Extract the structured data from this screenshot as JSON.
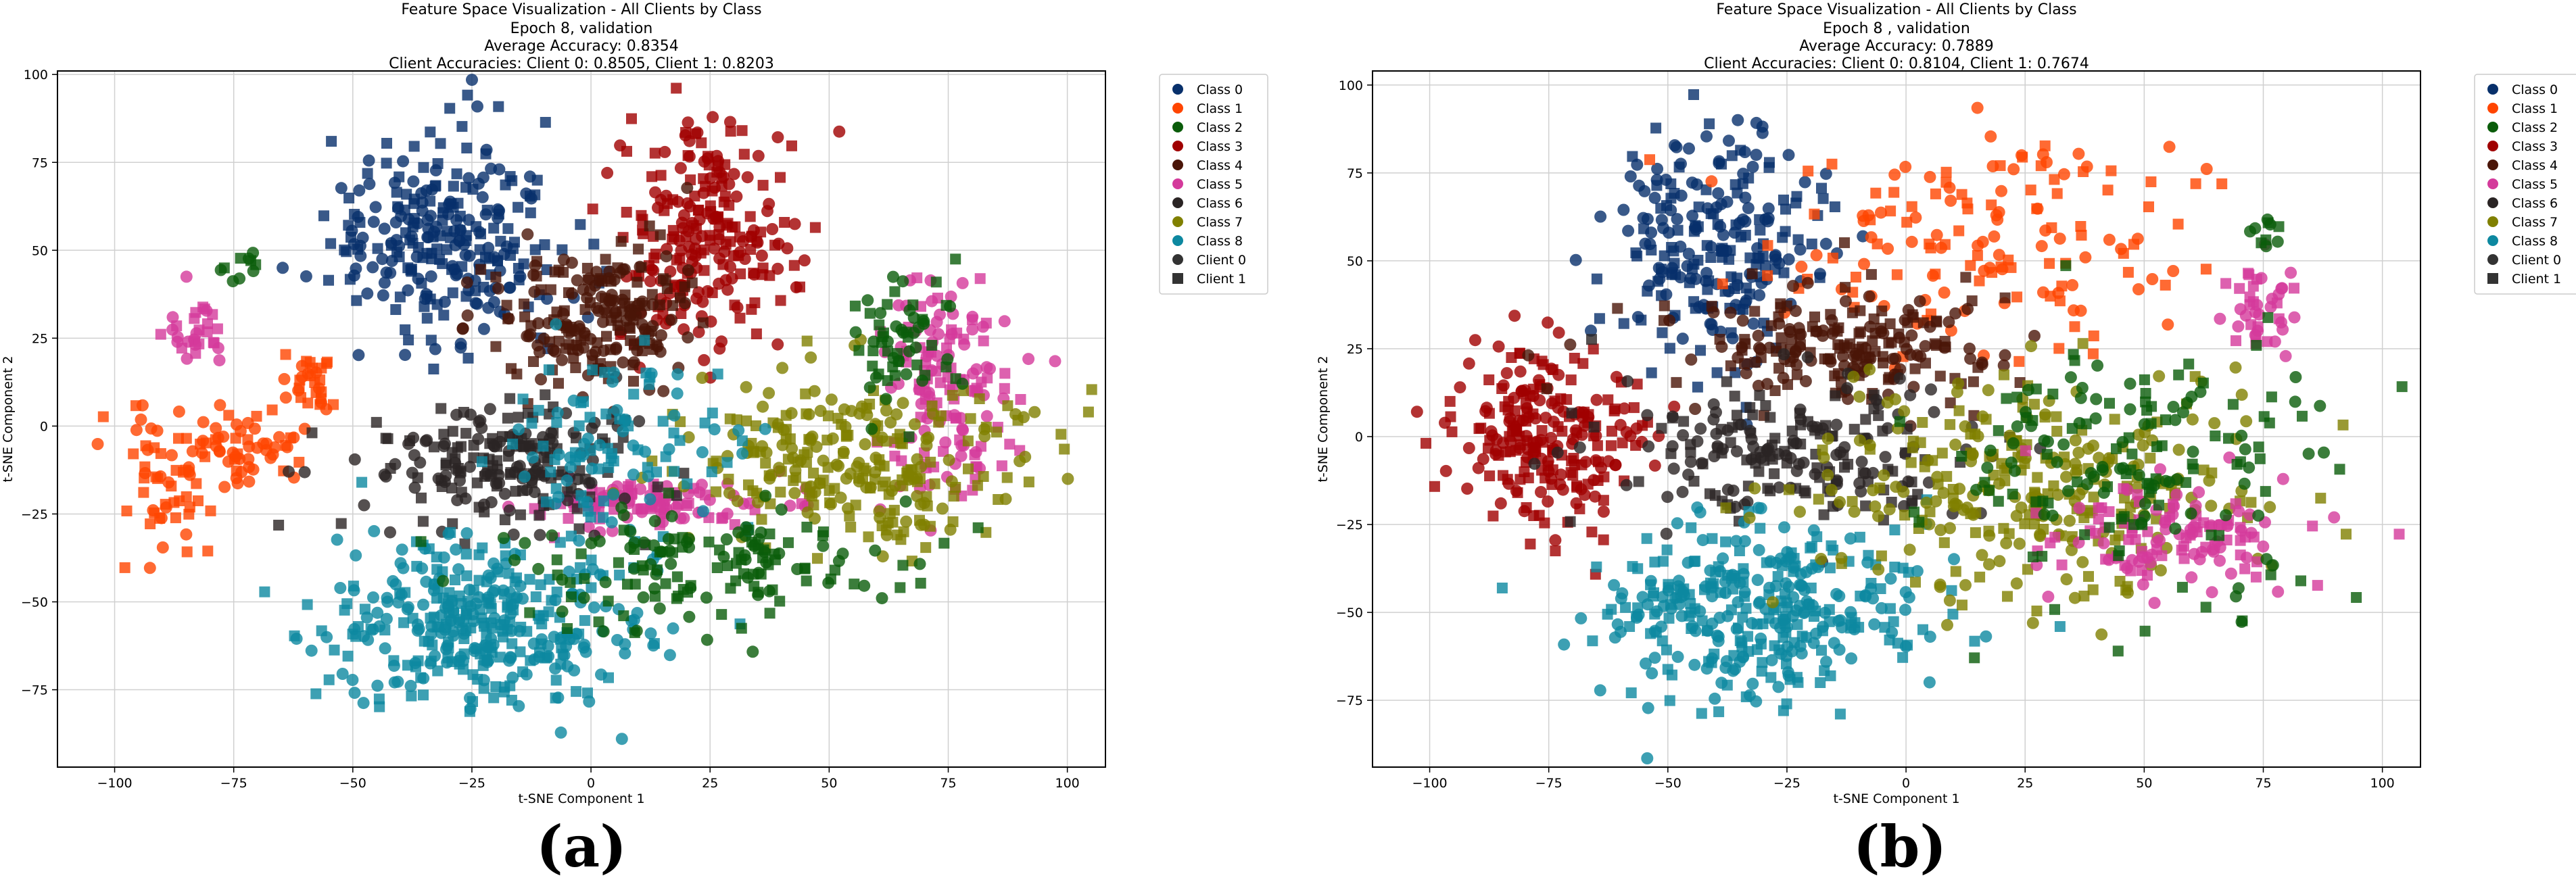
{
  "figure": {
    "panel_labels": [
      "(a)",
      "(b)"
    ]
  },
  "chart_data": [
    {
      "type": "scatter",
      "title": "Feature Space Visualization - All Clients by Class",
      "subtitle_lines": [
        "Epoch 8, validation",
        "Average Accuracy: 0.8354",
        "Client Accuracies: Client 0: 0.8505, Client 1: 0.8203"
      ],
      "xlabel": "t-SNE Component 1",
      "ylabel": "t-SNE Component 2",
      "xlim": [
        -112,
        108
      ],
      "ylim": [
        -97,
        101
      ],
      "xticks": [
        -100,
        -75,
        -50,
        -25,
        0,
        25,
        50,
        75,
        100
      ],
      "yticks": [
        -75,
        -50,
        -25,
        0,
        25,
        50,
        75,
        100
      ],
      "xtick_labels": [
        "−100",
        "−75",
        "−50",
        "−25",
        "0",
        "25",
        "50",
        "75",
        "100"
      ],
      "ytick_labels": [
        "−75",
        "−50",
        "−25",
        "0",
        "25",
        "50",
        "75",
        "100"
      ],
      "grid": true,
      "legend_position": "outside-top-right",
      "legend": [
        {
          "label": "Class 0",
          "color": "#08306b",
          "marker": "circle"
        },
        {
          "label": "Class 1",
          "color": "#ff4500",
          "marker": "circle"
        },
        {
          "label": "Class 2",
          "color": "#0a5c0a",
          "marker": "circle"
        },
        {
          "label": "Class 3",
          "color": "#a00000",
          "marker": "circle"
        },
        {
          "label": "Class 4",
          "color": "#4a1508",
          "marker": "circle"
        },
        {
          "label": "Class 5",
          "color": "#d43a9b",
          "marker": "circle"
        },
        {
          "label": "Class 6",
          "color": "#2a2424",
          "marker": "circle"
        },
        {
          "label": "Class 7",
          "color": "#808000",
          "marker": "circle"
        },
        {
          "label": "Class 8",
          "color": "#0d88a0",
          "marker": "circle"
        },
        {
          "label": "Client 0",
          "color": "#333333",
          "marker": "circle"
        },
        {
          "label": "Client 1",
          "color": "#333333",
          "marker": "square"
        }
      ],
      "clusters": [
        {
          "class": 0,
          "cx": -30,
          "cy": 55,
          "sx": 12,
          "sy": 15,
          "n": 260
        },
        {
          "class": 1,
          "cx": -88,
          "cy": -15,
          "sx": 5,
          "sy": 12,
          "n": 60
        },
        {
          "class": 1,
          "cx": -72,
          "cy": -8,
          "sx": 6,
          "sy": 4,
          "n": 50
        },
        {
          "class": 1,
          "cx": -60,
          "cy": 12,
          "sx": 4,
          "sy": 6,
          "n": 30
        },
        {
          "class": 3,
          "cx": 25,
          "cy": 55,
          "sx": 9,
          "sy": 15,
          "n": 230
        },
        {
          "class": 4,
          "cx": 2,
          "cy": 30,
          "sx": 11,
          "sy": 11,
          "n": 200
        },
        {
          "class": 5,
          "cx": -83,
          "cy": 27,
          "sx": 3,
          "sy": 5,
          "n": 30
        },
        {
          "class": 5,
          "cx": 75,
          "cy": 12,
          "sx": 7,
          "sy": 15,
          "n": 140
        },
        {
          "class": 5,
          "cx": 15,
          "cy": -22,
          "sx": 13,
          "sy": 4,
          "n": 100
        },
        {
          "class": 6,
          "cx": -20,
          "cy": -10,
          "sx": 15,
          "sy": 10,
          "n": 200
        },
        {
          "class": 7,
          "cx": 55,
          "cy": -10,
          "sx": 18,
          "sy": 12,
          "n": 260
        },
        {
          "class": 8,
          "cx": -25,
          "cy": -55,
          "sx": 16,
          "sy": 12,
          "n": 350
        },
        {
          "class": 8,
          "cx": 5,
          "cy": -10,
          "sx": 11,
          "sy": 15,
          "n": 110
        },
        {
          "class": 2,
          "cx": 25,
          "cy": -40,
          "sx": 22,
          "sy": 9,
          "n": 150
        },
        {
          "class": 2,
          "cx": 65,
          "cy": 25,
          "sx": 6,
          "sy": 10,
          "n": 60
        },
        {
          "class": 2,
          "cx": -73,
          "cy": 45,
          "sx": 2,
          "sy": 3,
          "n": 10
        }
      ]
    },
    {
      "type": "scatter",
      "title": "Feature Space Visualization - All Clients by Class",
      "subtitle_lines": [
        "Epoch 8 , validation",
        "Average Accuracy: 0.7889",
        "Client Accuracies: Client 0: 0.8104, Client 1: 0.7674"
      ],
      "xlabel": "t-SNE Component 1",
      "ylabel": "t-SNE Component 2",
      "xlim": [
        -112,
        108
      ],
      "ylim": [
        -94,
        104
      ],
      "xticks": [
        -100,
        -75,
        -50,
        -25,
        0,
        25,
        50,
        75,
        100
      ],
      "yticks": [
        -75,
        -50,
        -25,
        0,
        25,
        50,
        75,
        100
      ],
      "xtick_labels": [
        "−100",
        "−75",
        "−50",
        "−25",
        "0",
        "25",
        "50",
        "75",
        "100"
      ],
      "ytick_labels": [
        "−75",
        "−50",
        "−25",
        "0",
        "25",
        "50",
        "75",
        "100"
      ],
      "grid": true,
      "legend_position": "outside-top-right",
      "legend": [
        {
          "label": "Class 0",
          "color": "#08306b",
          "marker": "circle"
        },
        {
          "label": "Class 1",
          "color": "#ff4500",
          "marker": "circle"
        },
        {
          "label": "Class 2",
          "color": "#0a5c0a",
          "marker": "circle"
        },
        {
          "label": "Class 3",
          "color": "#a00000",
          "marker": "circle"
        },
        {
          "label": "Class 4",
          "color": "#4a1508",
          "marker": "circle"
        },
        {
          "label": "Class 5",
          "color": "#d43a9b",
          "marker": "circle"
        },
        {
          "label": "Class 6",
          "color": "#2a2424",
          "marker": "circle"
        },
        {
          "label": "Class 7",
          "color": "#808000",
          "marker": "circle"
        },
        {
          "label": "Class 8",
          "color": "#0d88a0",
          "marker": "circle"
        },
        {
          "label": "Client 0",
          "color": "#333333",
          "marker": "circle"
        },
        {
          "label": "Client 1",
          "color": "#333333",
          "marker": "square"
        }
      ],
      "clusters": [
        {
          "class": 0,
          "cx": -40,
          "cy": 55,
          "sx": 12,
          "sy": 18,
          "n": 240
        },
        {
          "class": 3,
          "cx": -75,
          "cy": 0,
          "sx": 10,
          "sy": 13,
          "n": 230
        },
        {
          "class": 1,
          "cx": 15,
          "cy": 55,
          "sx": 20,
          "sy": 16,
          "n": 150
        },
        {
          "class": 4,
          "cx": -15,
          "cy": 25,
          "sx": 18,
          "sy": 8,
          "n": 200
        },
        {
          "class": 6,
          "cx": -25,
          "cy": -5,
          "sx": 18,
          "sy": 10,
          "n": 200
        },
        {
          "class": 8,
          "cx": -30,
          "cy": -50,
          "sx": 16,
          "sy": 13,
          "n": 340
        },
        {
          "class": 7,
          "cx": 25,
          "cy": -15,
          "sx": 25,
          "sy": 15,
          "n": 300
        },
        {
          "class": 5,
          "cx": 55,
          "cy": -30,
          "sx": 14,
          "sy": 8,
          "n": 120
        },
        {
          "class": 5,
          "cx": 75,
          "cy": 35,
          "sx": 4,
          "sy": 6,
          "n": 40
        },
        {
          "class": 2,
          "cx": 50,
          "cy": -10,
          "sx": 20,
          "sy": 18,
          "n": 160
        },
        {
          "class": 2,
          "cx": 75,
          "cy": 58,
          "sx": 2,
          "sy": 4,
          "n": 10
        }
      ]
    }
  ]
}
